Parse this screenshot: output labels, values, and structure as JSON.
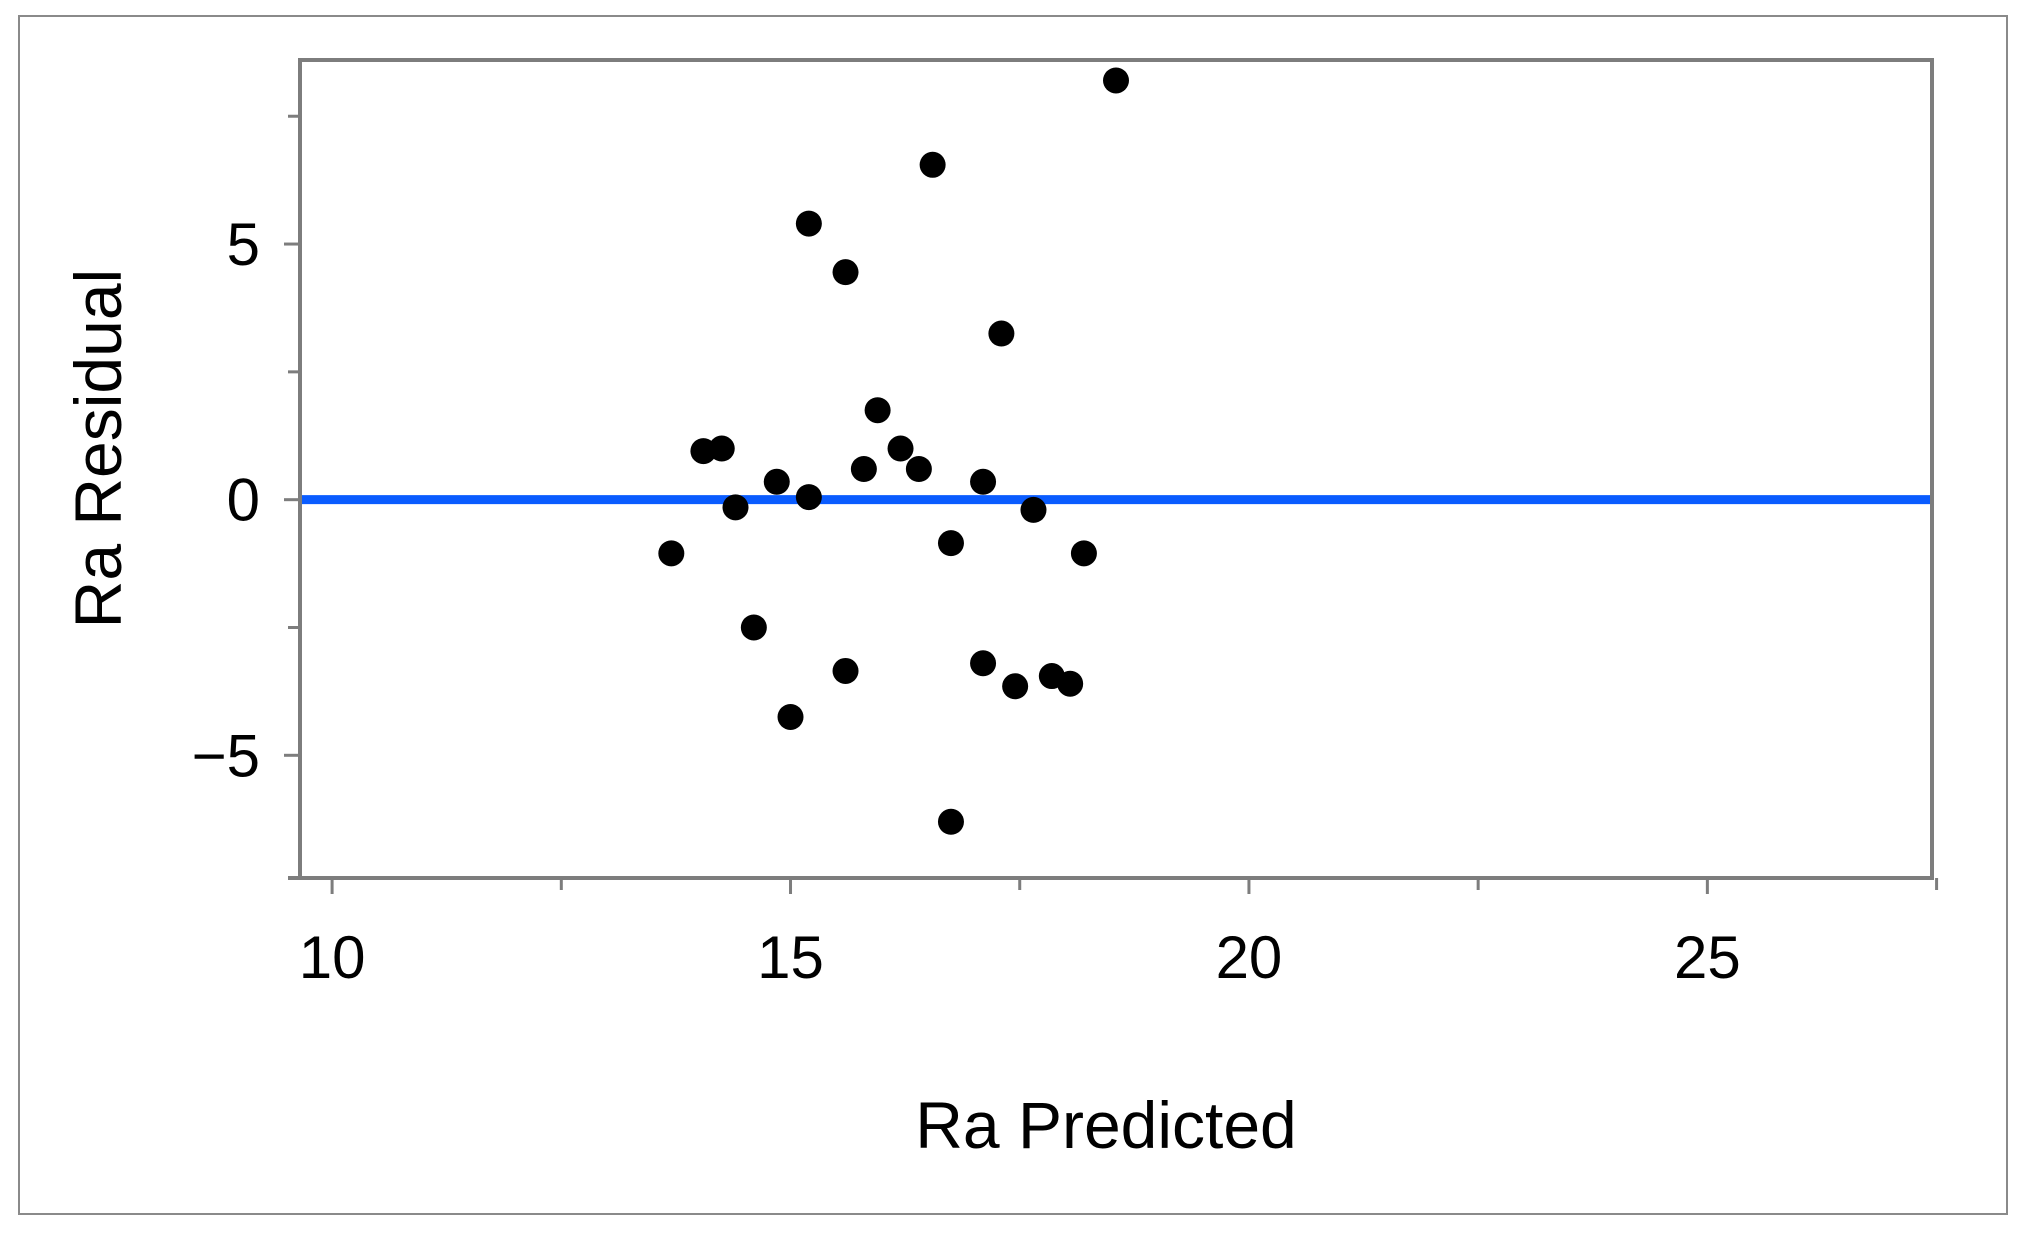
{
  "chart_data": {
    "type": "scatter",
    "title": "",
    "xlabel": "Ra Predicted",
    "ylabel": "Ra Residual",
    "xlim": [
      9.65,
      27.45
    ],
    "ylim": [
      -7.4,
      8.6
    ],
    "x_ticks": [
      10,
      15,
      20,
      25
    ],
    "x_tick_labels": [
      "10",
      "15",
      "20",
      "25"
    ],
    "x_minor_ticks": [
      12.5,
      17.5,
      22.5,
      27.5
    ],
    "y_ticks": [
      -5,
      0,
      5
    ],
    "y_tick_labels": [
      "−5",
      "0",
      "5"
    ],
    "y_minor_ticks": [
      -2.5,
      2.5,
      7.5
    ],
    "grid": false,
    "reference_line": {
      "y": 0,
      "color": "#0a5cff"
    },
    "point_color": "#000000",
    "points": [
      {
        "x": 13.7,
        "y": -1.05
      },
      {
        "x": 14.05,
        "y": 0.95
      },
      {
        "x": 14.25,
        "y": 1.0
      },
      {
        "x": 14.4,
        "y": -0.15
      },
      {
        "x": 14.6,
        "y": -2.5
      },
      {
        "x": 14.85,
        "y": 0.35
      },
      {
        "x": 15.0,
        "y": -4.25
      },
      {
        "x": 15.2,
        "y": 5.4
      },
      {
        "x": 15.2,
        "y": 0.05
      },
      {
        "x": 15.6,
        "y": 4.45
      },
      {
        "x": 15.6,
        "y": -3.35
      },
      {
        "x": 15.8,
        "y": 0.6
      },
      {
        "x": 15.95,
        "y": 1.75
      },
      {
        "x": 16.2,
        "y": 1.0
      },
      {
        "x": 16.4,
        "y": 0.6
      },
      {
        "x": 16.55,
        "y": 6.55
      },
      {
        "x": 16.75,
        "y": -0.85
      },
      {
        "x": 16.75,
        "y": -6.3
      },
      {
        "x": 17.1,
        "y": 0.35
      },
      {
        "x": 17.1,
        "y": -3.2
      },
      {
        "x": 17.3,
        "y": 3.25
      },
      {
        "x": 17.45,
        "y": -3.65
      },
      {
        "x": 17.65,
        "y": -0.2
      },
      {
        "x": 17.85,
        "y": -3.45
      },
      {
        "x": 18.05,
        "y": -3.6
      },
      {
        "x": 18.2,
        "y": -1.05
      },
      {
        "x": 18.55,
        "y": 8.2
      }
    ]
  }
}
